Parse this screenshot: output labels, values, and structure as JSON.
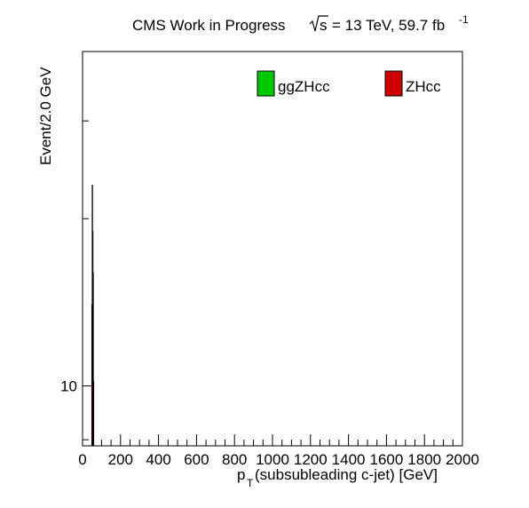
{
  "chart_data": {
    "type": "bar",
    "title": {
      "main": "CMS Work in Progress",
      "energy_prefix": "s",
      "energy_suffix": "= 13 TeV, 59.7 fb",
      "exponent": "-1"
    },
    "xlabel": {
      "main": "p",
      "sub": "T",
      "rest": " (subsubleading c-jet) [GeV]"
    },
    "ylabel": "Event/2.0 GeV",
    "xlim": [
      0,
      2000
    ],
    "ylim": [
      7.8,
      40
    ],
    "y_log": true,
    "grid": false,
    "legend_placement": "top",
    "x_tick_labels": [
      "0",
      "200",
      "400",
      "600",
      "800",
      "1000",
      "1200",
      "1400",
      "1600",
      "1800",
      "2000"
    ],
    "y_tick_labels": [
      "10"
    ],
    "y_tick_values": [
      10
    ],
    "bin_width": 2.0,
    "series": [
      {
        "name": "ggZHcc",
        "color": "#00c800",
        "x": [
          50,
          52
        ],
        "values": [
          10.4,
          10.0
        ]
      },
      {
        "name": "ZHcc",
        "color": "#cc0000",
        "x": [
          48,
          50,
          52,
          54,
          56
        ],
        "values": [
          14,
          23,
          19,
          16,
          10.2
        ]
      }
    ]
  }
}
